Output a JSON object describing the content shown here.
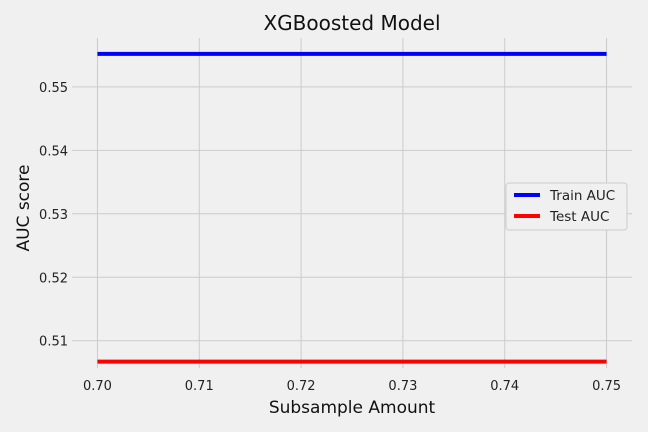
{
  "chart_data": {
    "type": "line",
    "title": "XGBoosted Model",
    "xlabel": "Subsample Amount",
    "ylabel": "AUC score",
    "xlim": [
      0.6975,
      0.7525
    ],
    "ylim": [
      0.5057,
      0.5577
    ],
    "x_ticks": [
      "0.70",
      "0.71",
      "0.72",
      "0.73",
      "0.74",
      "0.75"
    ],
    "y_ticks": [
      "0.51",
      "0.52",
      "0.53",
      "0.54",
      "0.55"
    ],
    "grid": true,
    "legend_position": "center-right",
    "series": [
      {
        "name": "Train AUC",
        "color": "#0000ff",
        "x": [
          0.7,
          0.75
        ],
        "y": [
          0.5552,
          0.5552
        ]
      },
      {
        "name": "Test AUC",
        "color": "#ff0000",
        "x": [
          0.7,
          0.75
        ],
        "y": [
          0.5067,
          0.5067
        ]
      }
    ]
  }
}
